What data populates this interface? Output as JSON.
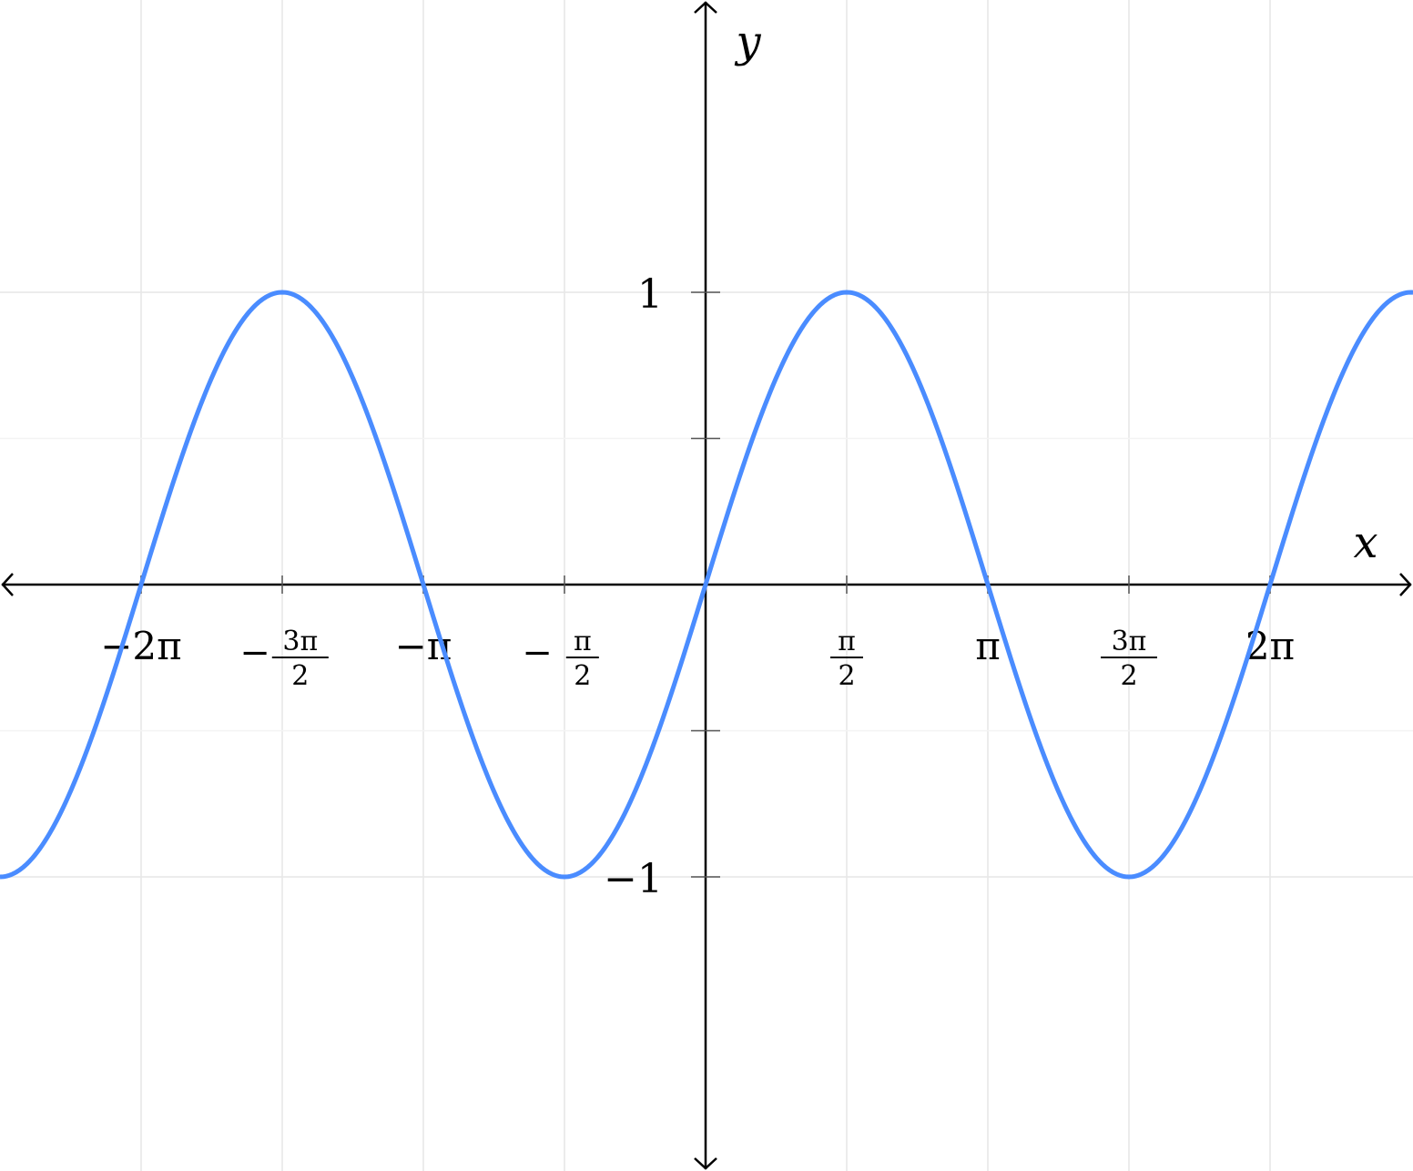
{
  "chart_data": {
    "type": "line",
    "function": "y = sin(x)",
    "xlabel": "x",
    "ylabel": "y",
    "xlim": [
      -7.854,
      7.874
    ],
    "ylim": [
      -2.006,
      2.0
    ],
    "grid": true,
    "series": [
      {
        "color": "#4a8cff",
        "samples_from": -7.854,
        "samples_to": 7.874
      }
    ],
    "x_ticks": [
      {
        "value": -6.2832,
        "sign": "−",
        "num": "2π",
        "den": ""
      },
      {
        "value": -4.7124,
        "sign": "−",
        "num": "3π",
        "den": "2"
      },
      {
        "value": -3.1416,
        "sign": "−",
        "num": "π",
        "den": ""
      },
      {
        "value": -1.5708,
        "sign": "−",
        "num": "π",
        "den": "2"
      },
      {
        "value": 1.5708,
        "sign": "",
        "num": "π",
        "den": "2"
      },
      {
        "value": 3.1416,
        "sign": "",
        "num": "π",
        "den": ""
      },
      {
        "value": 4.7124,
        "sign": "",
        "num": "3π",
        "den": "2"
      },
      {
        "value": 6.2832,
        "sign": "",
        "num": "2π",
        "den": ""
      }
    ],
    "y_ticks": [
      {
        "value": 1,
        "label": "1"
      },
      {
        "value": 0.5,
        "label": ""
      },
      {
        "value": -0.5,
        "label": ""
      },
      {
        "value": -1,
        "label": "−1"
      }
    ],
    "colors": {
      "curve": "#4a8cff",
      "grid_major": "#e6e6e6",
      "grid_minor": "#f3f3f3",
      "axis": "#000000"
    }
  }
}
